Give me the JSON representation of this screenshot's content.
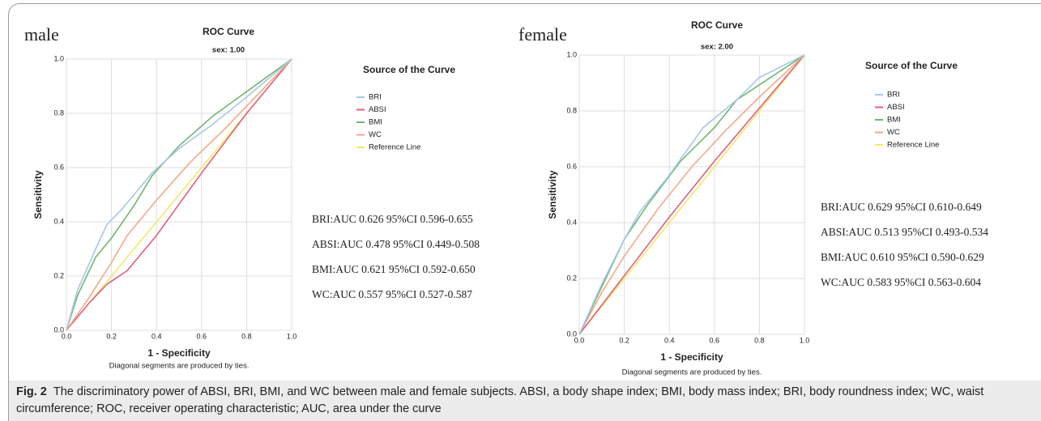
{
  "chart_data": [
    {
      "type": "line",
      "panel_label": "male",
      "title": "ROC Curve",
      "subtitle": "sex: 1.00",
      "xlabel": "1 - Specificity",
      "ylabel": "Sensitivity",
      "note": "Diagonal segments are produced by ties.",
      "legend_title": "Source of the Curve",
      "grid": true,
      "xlim": [
        0,
        1
      ],
      "ylim": [
        0,
        1
      ],
      "xticks": [
        {
          "value": 0,
          "label": "0.0"
        },
        0.2,
        0.4,
        0.6,
        0.8,
        {
          "value": 1,
          "label": "1.0"
        }
      ],
      "yticks": [
        {
          "value": 0,
          "label": "0.0"
        },
        0.2,
        0.4,
        0.6,
        0.8,
        {
          "value": 1,
          "label": "1.0"
        }
      ],
      "series": [
        {
          "name": "BRI",
          "color": "#a6c8e8",
          "x": [
            0,
            0.05,
            0.13,
            0.18,
            0.25,
            0.38,
            0.5,
            0.65,
            0.8,
            1
          ],
          "values": [
            0,
            0.15,
            0.3,
            0.39,
            0.45,
            0.58,
            0.67,
            0.76,
            0.86,
            1
          ]
        },
        {
          "name": "ABSI",
          "color": "#e0607e",
          "x": [
            0,
            0.1,
            0.18,
            0.27,
            0.4,
            0.6,
            0.8,
            1
          ],
          "values": [
            0,
            0.1,
            0.17,
            0.22,
            0.35,
            0.58,
            0.8,
            1
          ]
        },
        {
          "name": "BMI",
          "color": "#6fb86f",
          "x": [
            0,
            0.05,
            0.13,
            0.2,
            0.3,
            0.38,
            0.5,
            0.65,
            0.8,
            1
          ],
          "values": [
            0,
            0.13,
            0.27,
            0.34,
            0.46,
            0.57,
            0.68,
            0.79,
            0.88,
            1
          ]
        },
        {
          "name": "WC",
          "color": "#f3a98a",
          "x": [
            0,
            0.1,
            0.2,
            0.27,
            0.4,
            0.55,
            0.7,
            0.85,
            1
          ],
          "values": [
            0,
            0.12,
            0.25,
            0.35,
            0.48,
            0.62,
            0.74,
            0.87,
            1
          ]
        },
        {
          "name": "Reference Line",
          "color": "#f2ea6e",
          "x": [
            0,
            1
          ],
          "values": [
            0,
            1
          ]
        }
      ],
      "annotations": [
        "BRI:AUC 0.626 95%CI 0.596-0.655",
        "ABSI:AUC 0.478 95%CI 0.449-0.508",
        "BMI:AUC 0.621 95%CI 0.592-0.650",
        "WC:AUC 0.557 95%CI 0.527-0.587"
      ]
    },
    {
      "type": "line",
      "panel_label": "female",
      "title": "ROC Curve",
      "subtitle": "sex: 2.00",
      "xlabel": "1 - Specificity",
      "ylabel": "Sensitivity",
      "note": "Diagonal segments are produced by ties.",
      "legend_title": "Source of the Curve",
      "grid": true,
      "xlim": [
        0,
        1
      ],
      "ylim": [
        0,
        1
      ],
      "xticks": [
        {
          "value": 0,
          "label": "0.0"
        },
        0.2,
        0.4,
        0.6,
        0.8,
        {
          "value": 1,
          "label": "1.0"
        }
      ],
      "yticks": [
        {
          "value": 0,
          "label": "0.0"
        },
        0.2,
        0.4,
        0.6,
        0.8,
        {
          "value": 1,
          "label": "1.0"
        }
      ],
      "series": [
        {
          "name": "BRI",
          "color": "#a6c8e8",
          "x": [
            0,
            0.1,
            0.2,
            0.27,
            0.4,
            0.55,
            0.7,
            0.8,
            1
          ],
          "values": [
            0,
            0.18,
            0.34,
            0.44,
            0.57,
            0.74,
            0.84,
            0.92,
            1
          ]
        },
        {
          "name": "ABSI",
          "color": "#e0607e",
          "x": [
            0,
            0.2,
            0.4,
            0.6,
            0.8,
            1
          ],
          "values": [
            0,
            0.21,
            0.42,
            0.62,
            0.81,
            1
          ]
        },
        {
          "name": "BMI",
          "color": "#6fb86f",
          "x": [
            0,
            0.1,
            0.2,
            0.3,
            0.45,
            0.6,
            0.7,
            0.85,
            1
          ],
          "values": [
            0,
            0.17,
            0.34,
            0.46,
            0.62,
            0.74,
            0.84,
            0.92,
            1
          ]
        },
        {
          "name": "WC",
          "color": "#f3a98a",
          "x": [
            0,
            0.1,
            0.2,
            0.35,
            0.5,
            0.65,
            0.8,
            1
          ],
          "values": [
            0,
            0.15,
            0.28,
            0.45,
            0.6,
            0.73,
            0.85,
            1
          ]
        },
        {
          "name": "Reference Line",
          "color": "#f2ea6e",
          "x": [
            0,
            1
          ],
          "values": [
            0,
            1
          ]
        }
      ],
      "annotations": [
        "BRI:AUC 0.629 95%CI 0.610-0.649",
        "ABSI:AUC 0.513 95%CI 0.493-0.534",
        "BMI:AUC 0.610 95%CI 0.590-0.629",
        "WC:AUC 0.583 95%CI 0.563-0.604"
      ]
    }
  ],
  "caption": {
    "label": "Fig. 2",
    "text": "The discriminatory power of ABSI, BRI, BMI, and WC between male and female subjects. ABSI, a body shape index; BMI, body mass index; BRI, body roundness index; WC, waist circumference; ROC, receiver operating characteristic; AUC, area under the curve"
  }
}
